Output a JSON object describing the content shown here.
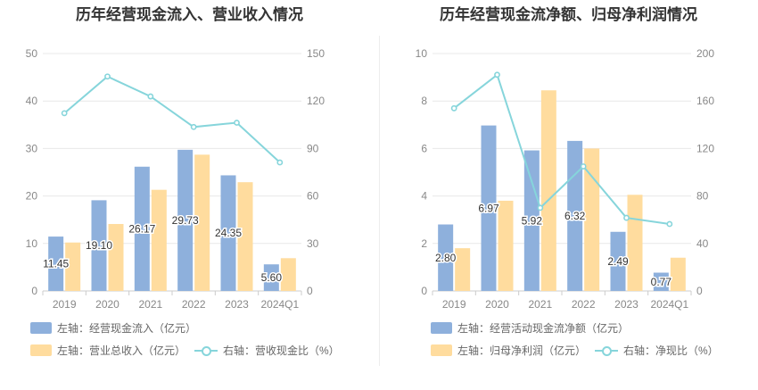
{
  "colors": {
    "bar1": "#8eb0dc",
    "bar2": "#ffdc9e",
    "line": "#86d5db",
    "grid": "#e8e8e8",
    "axis_text": "#888888"
  },
  "chart_data": [
    {
      "type": "bar",
      "title": "历年经营现金流入、营业收入情况",
      "categories": [
        "2019",
        "2020",
        "2021",
        "2022",
        "2023",
        "2024Q1"
      ],
      "y_left": {
        "ticks": [
          "0",
          "10",
          "20",
          "30",
          "40",
          "50"
        ],
        "range": [
          0,
          50
        ]
      },
      "y_right": {
        "ticks": [
          "0",
          "30",
          "60",
          "90",
          "120",
          "150"
        ],
        "range": [
          0,
          150
        ]
      },
      "series": [
        {
          "name": "左轴：经营现金流入（亿元）",
          "type": "bar",
          "axis": "left",
          "values": [
            11.45,
            19.1,
            26.17,
            29.73,
            24.35,
            5.6
          ],
          "labels": [
            "11.45",
            "19.10",
            "26.17",
            "29.73",
            "24.35",
            "5.60"
          ]
        },
        {
          "name": "左轴：营业总收入（亿元）",
          "type": "bar",
          "axis": "left",
          "values": [
            10.2,
            14.1,
            21.3,
            28.7,
            22.9,
            6.9
          ]
        },
        {
          "name": "右轴：营收现金比（%）",
          "type": "line",
          "axis": "right",
          "values": [
            112.3,
            135.5,
            122.9,
            103.6,
            106.3,
            81.2
          ]
        }
      ]
    },
    {
      "type": "bar",
      "title": "历年经营现金流净额、归母净利润情况",
      "categories": [
        "2019",
        "2020",
        "2021",
        "2022",
        "2023",
        "2024Q1"
      ],
      "y_left": {
        "ticks": [
          "0",
          "2",
          "4",
          "6",
          "8",
          "10"
        ],
        "range": [
          0,
          10
        ]
      },
      "y_right": {
        "ticks": [
          "0",
          "40",
          "80",
          "120",
          "160",
          "200"
        ],
        "range": [
          0,
          200
        ]
      },
      "series": [
        {
          "name": "左轴：经营活动现金流净额（亿元）",
          "type": "bar",
          "axis": "left",
          "values": [
            2.8,
            6.97,
            5.92,
            6.32,
            2.49,
            0.77
          ],
          "labels": [
            "2.80",
            "6.97",
            "5.92",
            "6.32",
            "2.49",
            "0.77"
          ]
        },
        {
          "name": "左轴：归母净利润（亿元）",
          "type": "bar",
          "axis": "left",
          "values": [
            1.8,
            3.8,
            8.45,
            6.0,
            4.05,
            1.4
          ]
        },
        {
          "name": "右轴：净现比（%）",
          "type": "line",
          "axis": "right",
          "values": [
            153.9,
            182.1,
            70.0,
            104.9,
            61.6,
            56.4
          ]
        }
      ]
    }
  ]
}
